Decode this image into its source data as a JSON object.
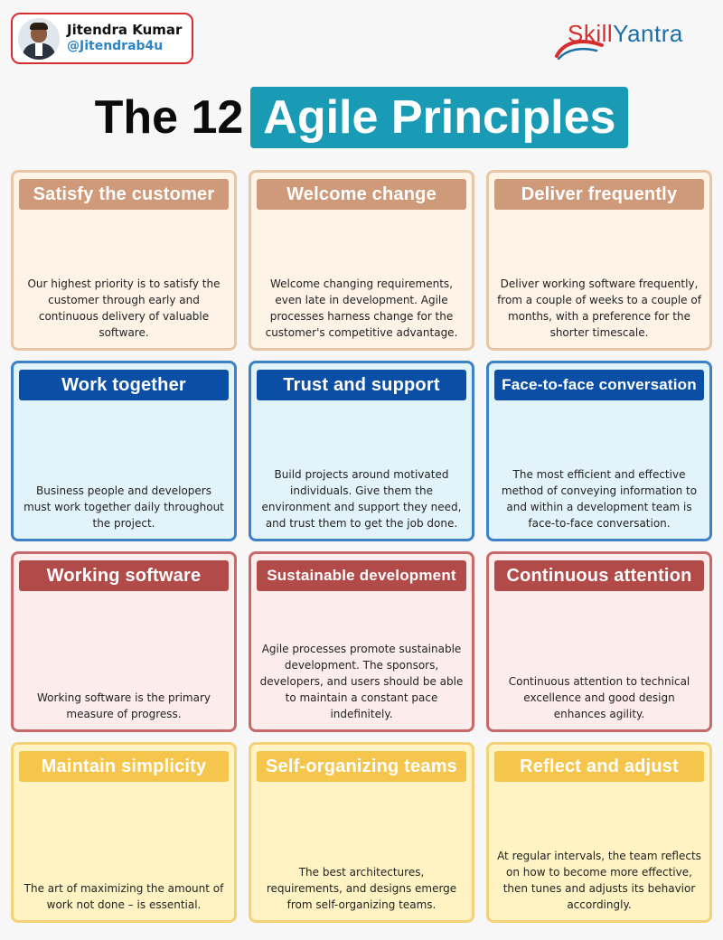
{
  "author": {
    "name": "Jitendra Kumar",
    "handle": "@Jitendrab4u"
  },
  "brand": {
    "part1": "Skill",
    "part2": "Yantra",
    "colors": {
      "red": "#d62e2e",
      "blue": "#1d6fa8"
    }
  },
  "title": {
    "plain": "The 12",
    "highlight": "Agile Principles",
    "highlight_color": "#1a9bb5"
  },
  "principles": [
    {
      "title": "Satisfy the customer",
      "desc": "Our highest priority is to satisfy the customer through early and continuous delivery of valuable software.",
      "theme": "tan"
    },
    {
      "title": "Welcome change",
      "desc": "Welcome changing requirements, even late in development. Agile processes harness change for the customer's competitive advantage.",
      "theme": "tan"
    },
    {
      "title": "Deliver frequently",
      "desc": "Deliver working software frequently, from a couple of weeks to a couple of months, with a preference for the shorter timescale.",
      "theme": "tan"
    },
    {
      "title": "Work together",
      "desc": "Business people and developers must work together daily throughout the project.",
      "theme": "blue"
    },
    {
      "title": "Trust and support",
      "desc": "Build projects around motivated individuals. Give them the environment and support they need, and trust them to get the job done.",
      "theme": "blue"
    },
    {
      "title": "Face-to-face conversation",
      "desc": "The most efficient and effective method of conveying information to and within a development team is face-to-face conversation.",
      "theme": "blue"
    },
    {
      "title": "Working software",
      "desc": "Working software is the primary measure of progress.",
      "theme": "red"
    },
    {
      "title": "Sustainable development",
      "desc": "Agile processes promote sustainable development. The sponsors, developers, and users should be able to maintain a constant pace indefinitely.",
      "theme": "red"
    },
    {
      "title": "Continuous attention",
      "desc": "Continuous attention to technical excellence and good design enhances agility.",
      "theme": "red"
    },
    {
      "title": "Maintain simplicity",
      "desc": "The art of maximizing the amount of work not done – is essential.",
      "theme": "yellow"
    },
    {
      "title": "Self-organizing teams",
      "desc": "The best architectures, requirements, and designs emerge from self-organizing teams.",
      "theme": "yellow"
    },
    {
      "title": "Reflect and adjust",
      "desc": "At regular intervals, the team reflects on how to become more effective, then tunes and adjusts its behavior accordingly.",
      "theme": "yellow"
    }
  ],
  "theme_colors": {
    "tan": "#cf9a7a",
    "blue": "#0b4ea6",
    "red": "#b24a4a",
    "yellow": "#f6c54b"
  }
}
